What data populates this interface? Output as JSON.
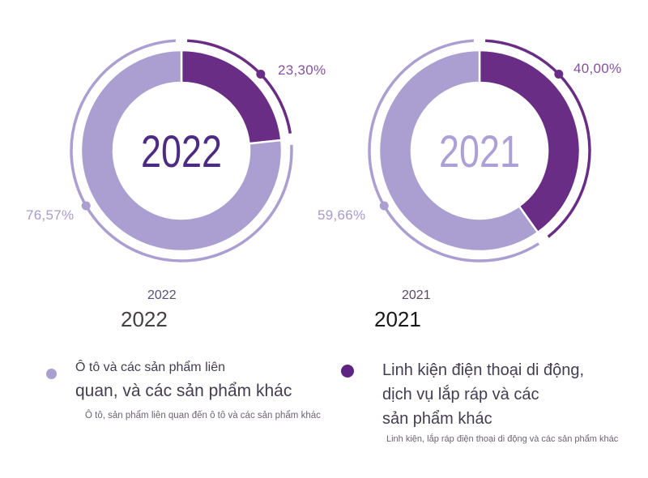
{
  "chart_data": [
    {
      "type": "pie",
      "variant": "donut",
      "center_label": "2022",
      "center_label_color": "#4e2b82",
      "slices": [
        {
          "name": "Linh kiện điện thoại di động, dịch vụ lắp ráp và các sản phẩm khác",
          "value": 23.3,
          "display": "23,30%",
          "color": "#6a2d85"
        },
        {
          "name": "Ô tô và các sản phẩm liên quan, và các sản phẩm khác",
          "value": 76.57,
          "display": "76,57%",
          "color": "#ab9ed0"
        }
      ],
      "start_angle_deg": 0,
      "labels_below": {
        "small": "2022",
        "large": "2022"
      },
      "legend_position": "bottom"
    },
    {
      "type": "pie",
      "variant": "donut",
      "center_label": "2021",
      "center_label_color": "#ada0d6",
      "slices": [
        {
          "name": "Linh kiện điện thoại di động, dịch vụ lắp ráp và các sản phẩm khác",
          "value": 40.0,
          "display": "40,00%",
          "color": "#6a2d85"
        },
        {
          "name": "Ô tô và các sản phẩm liên quan, và các sản phẩm khác",
          "value": 59.66,
          "display": "59,66%",
          "color": "#ab9ed0"
        }
      ],
      "start_angle_deg": 0,
      "labels_below": {
        "small": "2021",
        "large": "2021"
      },
      "legend_position": "bottom"
    }
  ],
  "legend": [
    {
      "color": "#ab9ed0",
      "lines": [
        "Ô tô và các sản phẩm liên",
        "quan, và các sản phẩm khác"
      ],
      "subtext": "Ô tô, sản phẩm liên quan đến ô tô và các sản phẩm khác"
    },
    {
      "color": "#5e2483",
      "lines": [
        "Linh kiện điện thoại di động,",
        "dịch vụ lắp ráp và các",
        "sản phẩm khác"
      ],
      "subtext": "Linh kiện, lắp ráp điện thoại di động và các sản phẩm khác"
    }
  ],
  "colors": {
    "dark_purple": "#6a2d85",
    "light_purple": "#ab9ed0",
    "pct_dark_label": "#84519f",
    "pct_light_label": "#a79ace",
    "background": "#ffffff"
  }
}
